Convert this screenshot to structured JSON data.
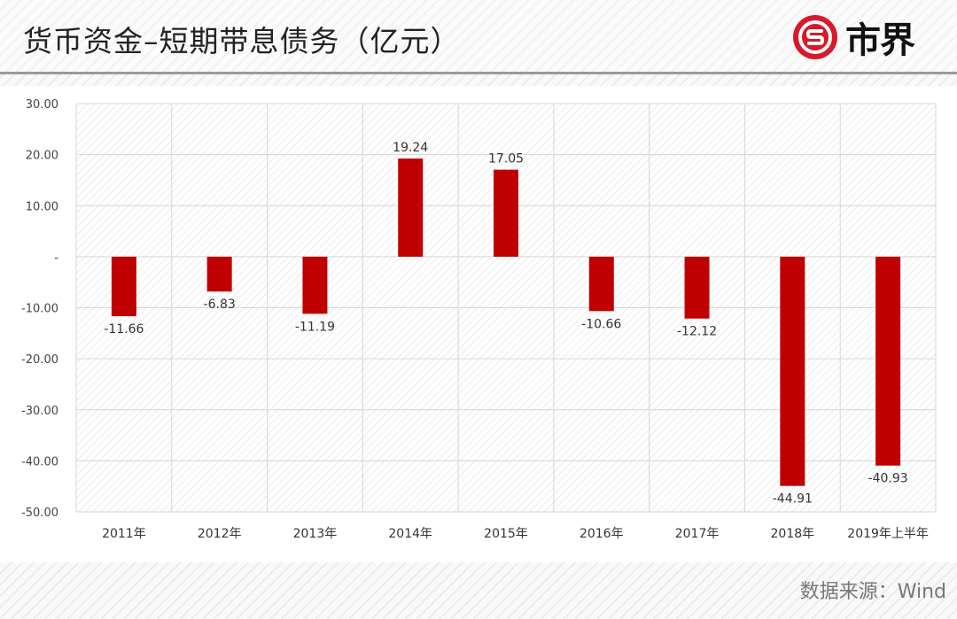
{
  "header": {
    "title": "货币资金–短期带息债务（亿元）",
    "brand": "市界",
    "brand_color": "#d7192a"
  },
  "footer": {
    "source": "数据来源：Wind"
  },
  "chart_data": {
    "type": "bar",
    "title": "货币资金–短期带息债务（亿元）",
    "categories": [
      "2011年",
      "2012年",
      "2013年",
      "2014年",
      "2015年",
      "2016年",
      "2017年",
      "2018年",
      "2019年上半年"
    ],
    "values": [
      -11.66,
      -6.83,
      -11.19,
      19.24,
      17.05,
      -10.66,
      -12.12,
      -44.91,
      -40.93
    ],
    "data_labels": [
      "-11.66",
      "-6.83",
      "-11.19",
      "19.24",
      "17.05",
      "-10.66",
      "-12.12",
      "-44.91",
      "-40.93"
    ],
    "ylim": [
      -50,
      30
    ],
    "yticks": [
      30,
      20,
      10,
      0,
      -10,
      -20,
      -30,
      -40,
      -50
    ],
    "ytick_labels": [
      "30.00",
      "20.00",
      "10.00",
      "-",
      "-10.00",
      "-20.00",
      "-30.00",
      "-40.00",
      "-50.00"
    ],
    "grid": true,
    "bar_color": "#c00000",
    "xlabel": "",
    "ylabel": ""
  }
}
